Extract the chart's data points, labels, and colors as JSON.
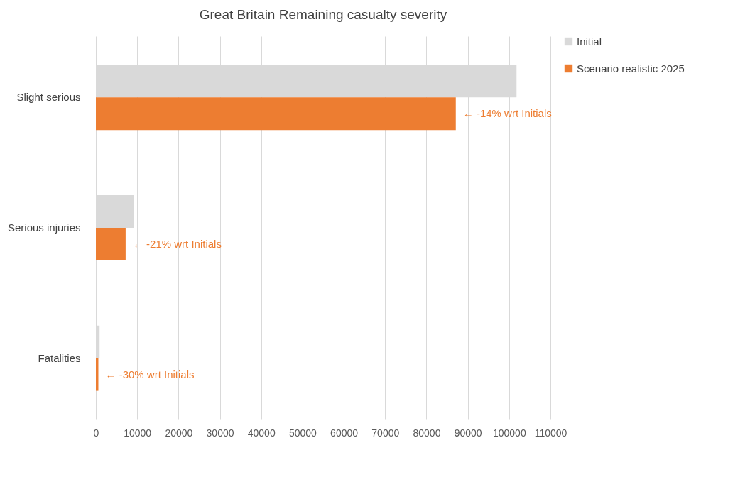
{
  "chart_data": {
    "type": "bar",
    "orientation": "horizontal",
    "title": "Great Britain Remaining casualty severity",
    "categories": [
      "Slight serious",
      "Serious injuries",
      "Fatalities"
    ],
    "series": [
      {
        "name": "Initial",
        "color": "#d9d9d9",
        "values": [
          101800,
          9200,
          900
        ]
      },
      {
        "name": "Scenario realistic 2025",
        "color": "#ed7d31",
        "values": [
          87100,
          7200,
          600
        ]
      }
    ],
    "xlim": [
      0,
      110000
    ],
    "xticks": [
      0,
      10000,
      20000,
      30000,
      40000,
      50000,
      60000,
      70000,
      80000,
      90000,
      100000,
      110000
    ],
    "grid": "x",
    "legend": "right",
    "annotations": [
      {
        "text": "← -14% wrt Initials",
        "x": 87100,
        "y": "Slight serious"
      },
      {
        "text": "← -21% wrt Initials",
        "x": 7200,
        "y": "Serious injuries"
      },
      {
        "text": "← -30% wrt Initials",
        "x": 600,
        "y": "Fatalities"
      }
    ]
  }
}
